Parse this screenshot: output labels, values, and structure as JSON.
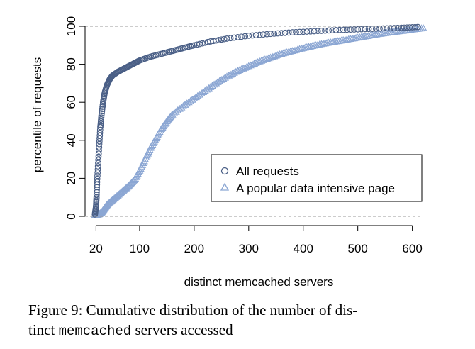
{
  "chart_data": {
    "type": "scatter",
    "xlabel": "distinct memcached servers",
    "ylabel": "percentile of requests",
    "xlim": [
      0,
      620
    ],
    "ylim": [
      0,
      100
    ],
    "x_ticks": [
      20,
      100,
      200,
      300,
      400,
      500,
      600
    ],
    "y_ticks": [
      0,
      20,
      40,
      60,
      80,
      100
    ],
    "reference_lines_y": [
      0,
      100
    ],
    "legend_position": "center-right",
    "series": [
      {
        "name": "All requests",
        "marker": "circle",
        "color": "#4a5f86",
        "x": [
          18,
          20,
          21,
          22,
          24,
          26,
          28,
          30,
          33,
          36,
          40,
          45,
          50,
          60,
          70,
          80,
          90,
          100,
          120,
          140,
          160,
          180,
          200,
          230,
          260,
          300,
          340,
          380,
          420,
          460,
          500,
          540,
          580,
          610
        ],
        "y": [
          1,
          5,
          10,
          18,
          28,
          38,
          47,
          53,
          60,
          65,
          69,
          72,
          74,
          76,
          77.5,
          79,
          80.5,
          82,
          84,
          85.5,
          87,
          88.5,
          90,
          92,
          93.5,
          95,
          96,
          96.8,
          97.4,
          98,
          98.4,
          98.8,
          99.2,
          99.6
        ]
      },
      {
        "name": "A popular data intensive page",
        "marker": "triangle",
        "color": "#8ba6d3",
        "x": [
          18,
          25,
          30,
          35,
          40,
          50,
          60,
          70,
          80,
          90,
          100,
          110,
          120,
          130,
          140,
          150,
          160,
          180,
          200,
          220,
          240,
          260,
          280,
          300,
          320,
          340,
          360,
          380,
          400,
          420,
          440,
          460,
          480,
          500,
          520,
          540,
          560,
          580,
          600,
          620
        ],
        "y": [
          0.5,
          1,
          2,
          4,
          6,
          8.5,
          11,
          13.5,
          16,
          19,
          24,
          30,
          36,
          41,
          46,
          50,
          53.5,
          58,
          62,
          66,
          70,
          73.5,
          76.5,
          79,
          81.5,
          83.5,
          85.5,
          87,
          88.5,
          89.8,
          91,
          92,
          93,
          94,
          95,
          96,
          96.8,
          97.5,
          98.3,
          99
        ]
      }
    ]
  },
  "caption": {
    "part1": "Figure 9: Cumulative distribution of the number of dis-",
    "part2a": "tinct ",
    "part2_mono": "memcached",
    "part2b": " servers accessed"
  }
}
